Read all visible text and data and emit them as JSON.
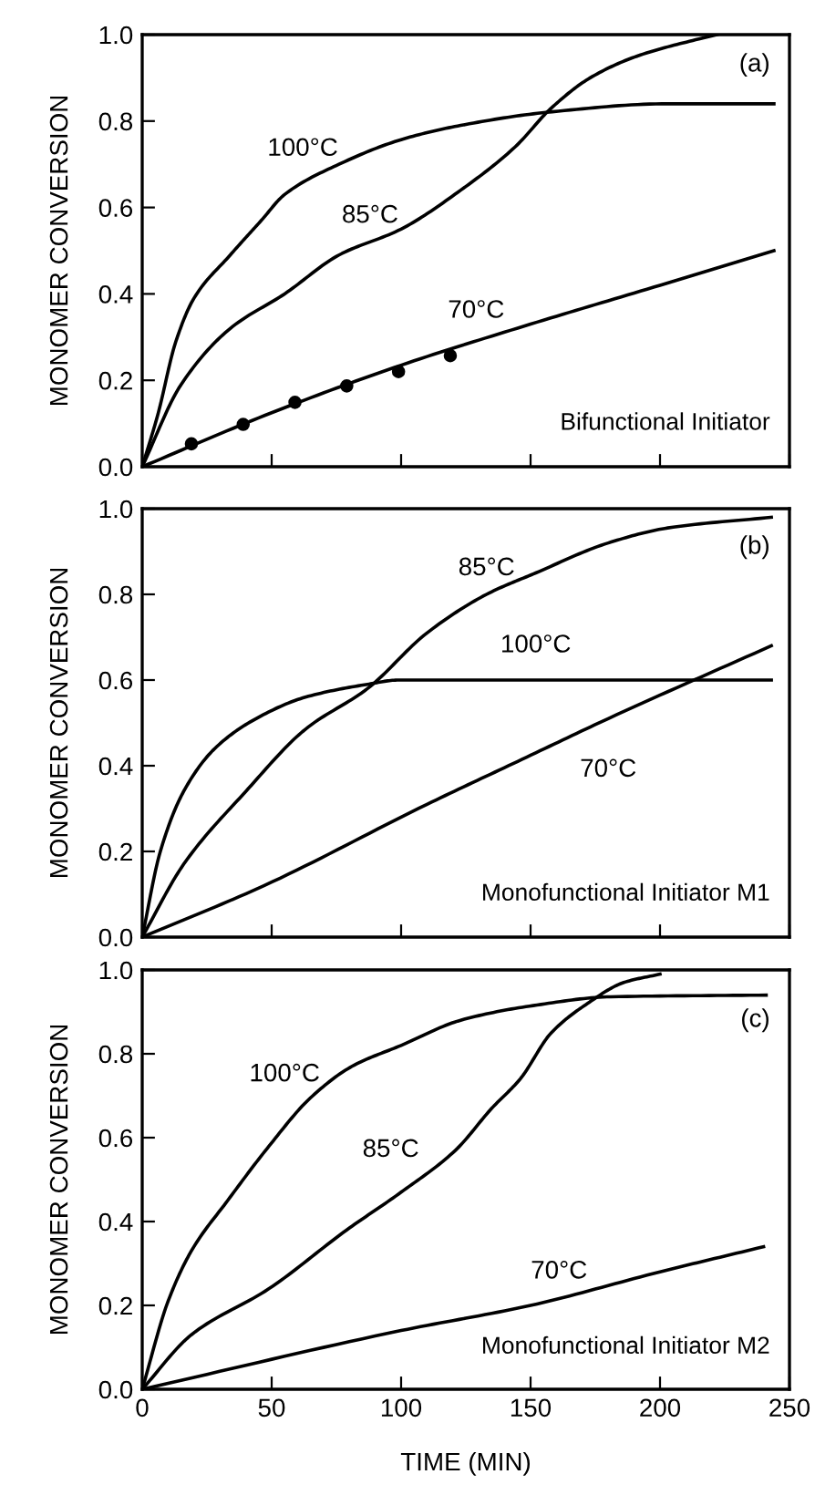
{
  "chart_data": [
    {
      "type": "line",
      "ylabel": "MONOMER CONVERSION",
      "annotations": [
        "(a)",
        "Bifunctional Initiator"
      ],
      "xlim": [
        0,
        250
      ],
      "ylim": [
        0,
        1.0
      ],
      "xticks": [
        {
          "value": 0,
          "label": null
        },
        {
          "value": 50,
          "label": null
        },
        {
          "value": 100,
          "label": null
        },
        {
          "value": 150,
          "label": null
        },
        {
          "value": 200,
          "label": null
        },
        {
          "value": 250,
          "label": null
        }
      ],
      "yticks": [
        {
          "value": 0,
          "label": "0.0"
        },
        {
          "value": 0.2,
          "label": "0.2"
        },
        {
          "value": 0.4,
          "label": "0.4"
        },
        {
          "value": 0.6,
          "label": "0.6"
        },
        {
          "value": 0.8,
          "label": "0.8"
        },
        {
          "value": 1.0,
          "label": "1.0"
        }
      ],
      "tick_labels": "y",
      "grid": false,
      "legend": false,
      "series": [
        {
          "name": "100°C",
          "color": "#000000",
          "x": [
            0,
            6,
            13,
            20,
            34,
            46,
            55,
            76,
            100,
            123,
            156,
            203,
            244
          ],
          "values": [
            0,
            0.12,
            0.29,
            0.39,
            0.49,
            0.57,
            0.63,
            0.7,
            0.757,
            0.79,
            0.82,
            0.84,
            0.84
          ]
        },
        {
          "name": "85°C",
          "color": "#000000",
          "x": [
            0,
            15,
            34,
            55,
            76,
            100,
            123,
            144,
            158,
            173,
            191,
            215,
            222
          ],
          "values": [
            0,
            0.19,
            0.32,
            0.4,
            0.49,
            0.55,
            0.64,
            0.74,
            0.83,
            0.9,
            0.95,
            0.99,
            1.0
          ]
        },
        {
          "name": "70°C",
          "color": "#000000",
          "x": [
            0,
            50,
            100,
            150,
            200,
            244
          ],
          "values": [
            0,
            0.125,
            0.235,
            0.33,
            0.42,
            0.5
          ]
        },
        {
          "type": "scatter",
          "color": "#000000",
          "marker": "circle",
          "x": [
            19,
            39,
            59,
            79,
            99,
            119
          ],
          "values": [
            0.053,
            0.098,
            0.149,
            0.187,
            0.22,
            0.257
          ]
        }
      ]
    },
    {
      "type": "line",
      "ylabel": "MONOMER CONVERSION",
      "annotations": [
        "(b)",
        "Monofunctional Initiator M1"
      ],
      "xlim": [
        0,
        250
      ],
      "ylim": [
        0,
        1.0
      ],
      "xticks": [
        {
          "value": 0,
          "label": null
        },
        {
          "value": 50,
          "label": null
        },
        {
          "value": 100,
          "label": null
        },
        {
          "value": 150,
          "label": null
        },
        {
          "value": 200,
          "label": null
        },
        {
          "value": 250,
          "label": null
        }
      ],
      "yticks": [
        {
          "value": 0,
          "label": "0.0"
        },
        {
          "value": 0.2,
          "label": "0.2"
        },
        {
          "value": 0.4,
          "label": "0.4"
        },
        {
          "value": 0.6,
          "label": "0.6"
        },
        {
          "value": 0.8,
          "label": "0.8"
        },
        {
          "value": 1.0,
          "label": "1.0"
        }
      ],
      "tick_labels": "y",
      "grid": false,
      "legend": false,
      "series": [
        {
          "name": "100°C",
          "color": "#000000",
          "x": [
            0,
            7,
            16,
            28,
            44,
            63,
            87,
            99,
            150,
            200,
            243
          ],
          "values": [
            0,
            0.2,
            0.34,
            0.44,
            0.51,
            0.56,
            0.59,
            0.6,
            0.6,
            0.6,
            0.6
          ]
        },
        {
          "name": "85°C",
          "color": "#000000",
          "x": [
            0,
            16,
            40,
            63,
            87,
            110,
            133,
            152,
            180,
            203,
            243
          ],
          "values": [
            0,
            0.17,
            0.34,
            0.485,
            0.58,
            0.71,
            0.8,
            0.85,
            0.92,
            0.955,
            0.98
          ]
        },
        {
          "name": "70°C",
          "color": "#000000",
          "x": [
            0,
            47,
            110,
            145,
            180,
            243
          ],
          "values": [
            0,
            0.12,
            0.31,
            0.41,
            0.51,
            0.68
          ]
        }
      ]
    },
    {
      "type": "line",
      "xlabel": "TIME (MIN)",
      "ylabel": "MONOMER CONVERSION",
      "annotations": [
        "(c)",
        "Monofunctional Initiator M2"
      ],
      "xlim": [
        0,
        250
      ],
      "ylim": [
        0,
        1.0
      ],
      "xticks": [
        {
          "value": 0,
          "label": "0"
        },
        {
          "value": 50,
          "label": "50"
        },
        {
          "value": 100,
          "label": "100"
        },
        {
          "value": 150,
          "label": "150"
        },
        {
          "value": 200,
          "label": "200"
        },
        {
          "value": 250,
          "label": "250"
        }
      ],
      "yticks": [
        {
          "value": 0,
          "label": "0.0"
        },
        {
          "value": 0.2,
          "label": "0.2"
        },
        {
          "value": 0.4,
          "label": "0.4"
        },
        {
          "value": 0.6,
          "label": "0.6"
        },
        {
          "value": 0.8,
          "label": "0.8"
        },
        {
          "value": 1.0,
          "label": "1.0"
        }
      ],
      "grid": false,
      "legend": false,
      "series": [
        {
          "name": "100°C",
          "color": "#000000",
          "x": [
            0,
            10,
            19,
            33,
            49,
            65,
            81,
            100,
            123,
            151,
            181,
            241
          ],
          "values": [
            0,
            0.21,
            0.33,
            0.45,
            0.58,
            0.695,
            0.77,
            0.82,
            0.88,
            0.915,
            0.936,
            0.94
          ]
        },
        {
          "name": "85°C",
          "color": "#000000",
          "x": [
            0,
            19,
            49,
            79,
            100,
            121,
            135,
            146,
            158,
            172,
            186,
            200
          ],
          "values": [
            0,
            0.13,
            0.24,
            0.38,
            0.47,
            0.57,
            0.67,
            0.74,
            0.85,
            0.92,
            0.97,
            0.99
          ]
        },
        {
          "name": "70°C",
          "color": "#000000",
          "x": [
            0,
            100,
            150,
            200,
            240
          ],
          "values": [
            0,
            0.14,
            0.2,
            0.28,
            0.34
          ]
        }
      ]
    }
  ]
}
